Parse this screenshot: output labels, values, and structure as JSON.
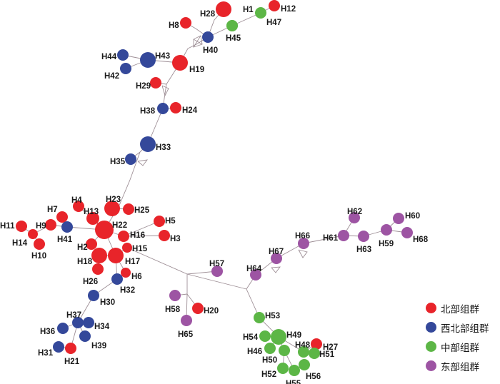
{
  "groups": [
    {
      "key": "north",
      "label": "北部组群",
      "color": "#e8242a"
    },
    {
      "key": "northwest",
      "label": "西北部组群",
      "color": "#34489a"
    },
    {
      "key": "central",
      "label": "中部组群",
      "color": "#5cb646"
    },
    {
      "key": "east",
      "label": "东部组群",
      "color": "#9d54a3"
    }
  ],
  "haplotypes": [
    {
      "id": "H1",
      "group": "central"
    },
    {
      "id": "H2",
      "group": "north"
    },
    {
      "id": "H3",
      "group": "north"
    },
    {
      "id": "H4",
      "group": "north"
    },
    {
      "id": "H5",
      "group": "north"
    },
    {
      "id": "H6",
      "group": "north"
    },
    {
      "id": "H7",
      "group": "north"
    },
    {
      "id": "H8",
      "group": "north"
    },
    {
      "id": "H9",
      "group": "north"
    },
    {
      "id": "H10",
      "group": "north"
    },
    {
      "id": "H11",
      "group": "north"
    },
    {
      "id": "H12",
      "group": "north"
    },
    {
      "id": "H13",
      "group": "north"
    },
    {
      "id": "H14",
      "group": "north"
    },
    {
      "id": "H15",
      "group": "north"
    },
    {
      "id": "H16",
      "group": "north"
    },
    {
      "id": "H17",
      "group": "north"
    },
    {
      "id": "H18",
      "group": "north"
    },
    {
      "id": "H19",
      "group": "north"
    },
    {
      "id": "H20",
      "group": "north"
    },
    {
      "id": "H21",
      "group": "north"
    },
    {
      "id": "H22",
      "group": "north"
    },
    {
      "id": "H23",
      "group": "north"
    },
    {
      "id": "H24",
      "group": "north"
    },
    {
      "id": "H25",
      "group": "north"
    },
    {
      "id": "H26",
      "group": "north"
    },
    {
      "id": "H27",
      "group": "north"
    },
    {
      "id": "H28",
      "group": "north"
    },
    {
      "id": "H29",
      "group": "north"
    },
    {
      "id": "H30",
      "group": "northwest"
    },
    {
      "id": "H31",
      "group": "northwest"
    },
    {
      "id": "H32",
      "group": "northwest"
    },
    {
      "id": "H33",
      "group": "northwest"
    },
    {
      "id": "H34",
      "group": "northwest"
    },
    {
      "id": "H35",
      "group": "northwest"
    },
    {
      "id": "H36",
      "group": "northwest"
    },
    {
      "id": "H37",
      "group": "northwest"
    },
    {
      "id": "H38",
      "group": "northwest"
    },
    {
      "id": "H39",
      "group": "northwest"
    },
    {
      "id": "H40",
      "group": "northwest"
    },
    {
      "id": "H41",
      "group": "northwest"
    },
    {
      "id": "H42",
      "group": "northwest"
    },
    {
      "id": "H43",
      "group": "northwest"
    },
    {
      "id": "H44",
      "group": "northwest"
    },
    {
      "id": "H45",
      "group": "central"
    },
    {
      "id": "H46",
      "group": "central"
    },
    {
      "id": "H47",
      "group": "central"
    },
    {
      "id": "H48",
      "group": "central"
    },
    {
      "id": "H49",
      "group": "central"
    },
    {
      "id": "H50",
      "group": "central"
    },
    {
      "id": "H51",
      "group": "central"
    },
    {
      "id": "H52",
      "group": "central"
    },
    {
      "id": "H53",
      "group": "central"
    },
    {
      "id": "H54",
      "group": "central"
    },
    {
      "id": "H55",
      "group": "central"
    },
    {
      "id": "H56",
      "group": "central"
    },
    {
      "id": "H57",
      "group": "east"
    },
    {
      "id": "H58",
      "group": "east"
    },
    {
      "id": "H59",
      "group": "east"
    },
    {
      "id": "H60",
      "group": "east"
    },
    {
      "id": "H61",
      "group": "east"
    },
    {
      "id": "H62",
      "group": "east"
    },
    {
      "id": "H63",
      "group": "east"
    },
    {
      "id": "H64",
      "group": "east"
    },
    {
      "id": "H65",
      "group": "east"
    },
    {
      "id": "H66",
      "group": "east"
    },
    {
      "id": "H67",
      "group": "east"
    },
    {
      "id": "H68",
      "group": "east"
    }
  ]
}
